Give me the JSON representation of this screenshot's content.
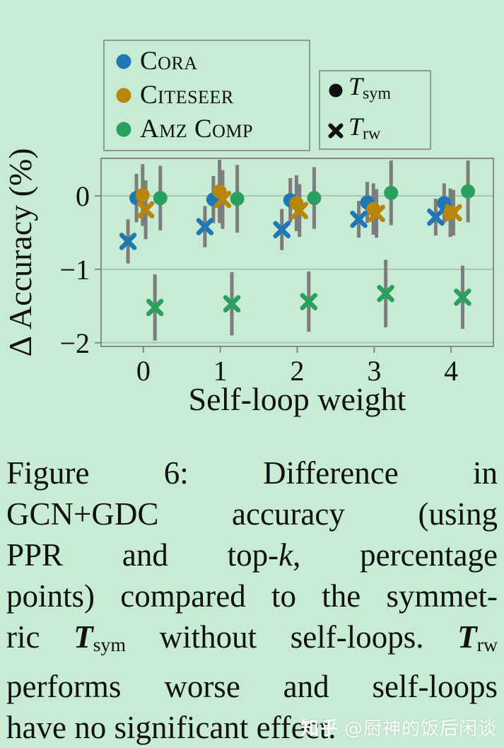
{
  "chart_data": {
    "type": "scatter",
    "title": "",
    "xlabel": "Self-loop weight",
    "ylabel": "Δ Accuracy (%)",
    "x": [
      0,
      1,
      2,
      3,
      4
    ],
    "xlim": [
      -0.55,
      4.55
    ],
    "ylim": [
      -2.05,
      0.51
    ],
    "grid": true,
    "legend_position": "above-plot",
    "xticks": [
      {
        "v": 0,
        "label": "0"
      },
      {
        "v": 1,
        "label": "1"
      },
      {
        "v": 2,
        "label": "2"
      },
      {
        "v": 3,
        "label": "3"
      },
      {
        "v": 4,
        "label": "4"
      }
    ],
    "yticks": [
      {
        "v": 0,
        "label": "0"
      },
      {
        "v": -1,
        "label": "−1"
      },
      {
        "v": -2,
        "label": "−2"
      }
    ],
    "errorbar_color": "#7d7d7d",
    "series": [
      {
        "id": "cora-tsym",
        "dataset": "Cora",
        "transition": "T_sym",
        "marker": "circle",
        "color": "#1f77b4",
        "dx": -0.09,
        "values": [
          -0.03,
          -0.05,
          -0.06,
          -0.09,
          -0.1
        ],
        "yerr": [
          0.33,
          0.32,
          0.3,
          0.28,
          0.27
        ]
      },
      {
        "id": "cora-trw",
        "dataset": "Cora",
        "transition": "T_rw",
        "marker": "cross",
        "color": "#1f77b4",
        "dx": -0.2,
        "values": [
          -0.62,
          -0.42,
          -0.46,
          -0.32,
          -0.29
        ],
        "yerr": [
          0.3,
          0.28,
          0.28,
          0.25,
          0.25
        ]
      },
      {
        "id": "citeseer-tsym",
        "dataset": "Citeseer",
        "transition": "T_sym",
        "marker": "circle",
        "color": "#b8860b",
        "dx": -0.01,
        "values": [
          0.01,
          0.06,
          -0.1,
          -0.18,
          -0.23
        ],
        "yerr": [
          0.42,
          0.43,
          0.38,
          0.35,
          0.33
        ]
      },
      {
        "id": "citeseer-trw",
        "dataset": "Citeseer",
        "transition": "T_rw",
        "marker": "cross",
        "color": "#b8860b",
        "dx": 0.03,
        "values": [
          -0.19,
          -0.05,
          -0.2,
          -0.24,
          -0.23
        ],
        "yerr": [
          0.4,
          0.4,
          0.36,
          0.33,
          0.31
        ]
      },
      {
        "id": "amzcomp-tsym",
        "dataset": "Amz Comp",
        "transition": "T_sym",
        "marker": "circle",
        "color": "#2aa05f",
        "dx": 0.22,
        "values": [
          -0.03,
          -0.04,
          -0.03,
          0.04,
          0.06
        ],
        "yerr": [
          0.44,
          0.46,
          0.42,
          0.44,
          0.42
        ]
      },
      {
        "id": "amzcomp-trw",
        "dataset": "Amz Comp",
        "transition": "T_rw",
        "marker": "cross",
        "color": "#2aa05f",
        "dx": 0.15,
        "values": [
          -1.52,
          -1.47,
          -1.44,
          -1.33,
          -1.38
        ],
        "yerr": [
          0.45,
          0.43,
          0.41,
          0.46,
          0.43
        ]
      }
    ]
  },
  "legend_datasets": {
    "items": [
      {
        "label": "Cora",
        "color": "#1f77b4",
        "marker": "circle"
      },
      {
        "label": "Citeseer",
        "color": "#b8860b",
        "marker": "circle"
      },
      {
        "label": "Amz Comp",
        "color": "#2aa05f",
        "marker": "circle"
      }
    ]
  },
  "legend_transitions": {
    "items": [
      {
        "marker": "circle",
        "main": "T",
        "sub": "sym"
      },
      {
        "marker": "cross",
        "main": "T",
        "sub": "rw"
      }
    ]
  },
  "caption": {
    "lines": [
      [
        {
          "t": "Figure 6: Difference in"
        }
      ],
      [
        {
          "t": "GCN+GDC accuracy (using"
        }
      ],
      [
        {
          "t": "PPR and top-"
        },
        {
          "t": "k",
          "s": "i"
        },
        {
          "t": ", percentage"
        }
      ],
      [
        {
          "t": "points) compared to the symmet-"
        }
      ],
      [
        {
          "t": "ric "
        },
        {
          "t": "T",
          "s": "bi"
        },
        {
          "t": "sym",
          "s": "sub"
        },
        {
          "t": " without self-loops. "
        },
        {
          "t": "T",
          "s": "bi"
        },
        {
          "t": "rw",
          "s": "sub"
        }
      ],
      [
        {
          "t": "performs worse and self-loops"
        }
      ],
      [
        {
          "t": "have no significant effect."
        }
      ]
    ]
  },
  "watermark": {
    "brand": "知乎",
    "handle": "@厨神的饭后闲谈"
  }
}
